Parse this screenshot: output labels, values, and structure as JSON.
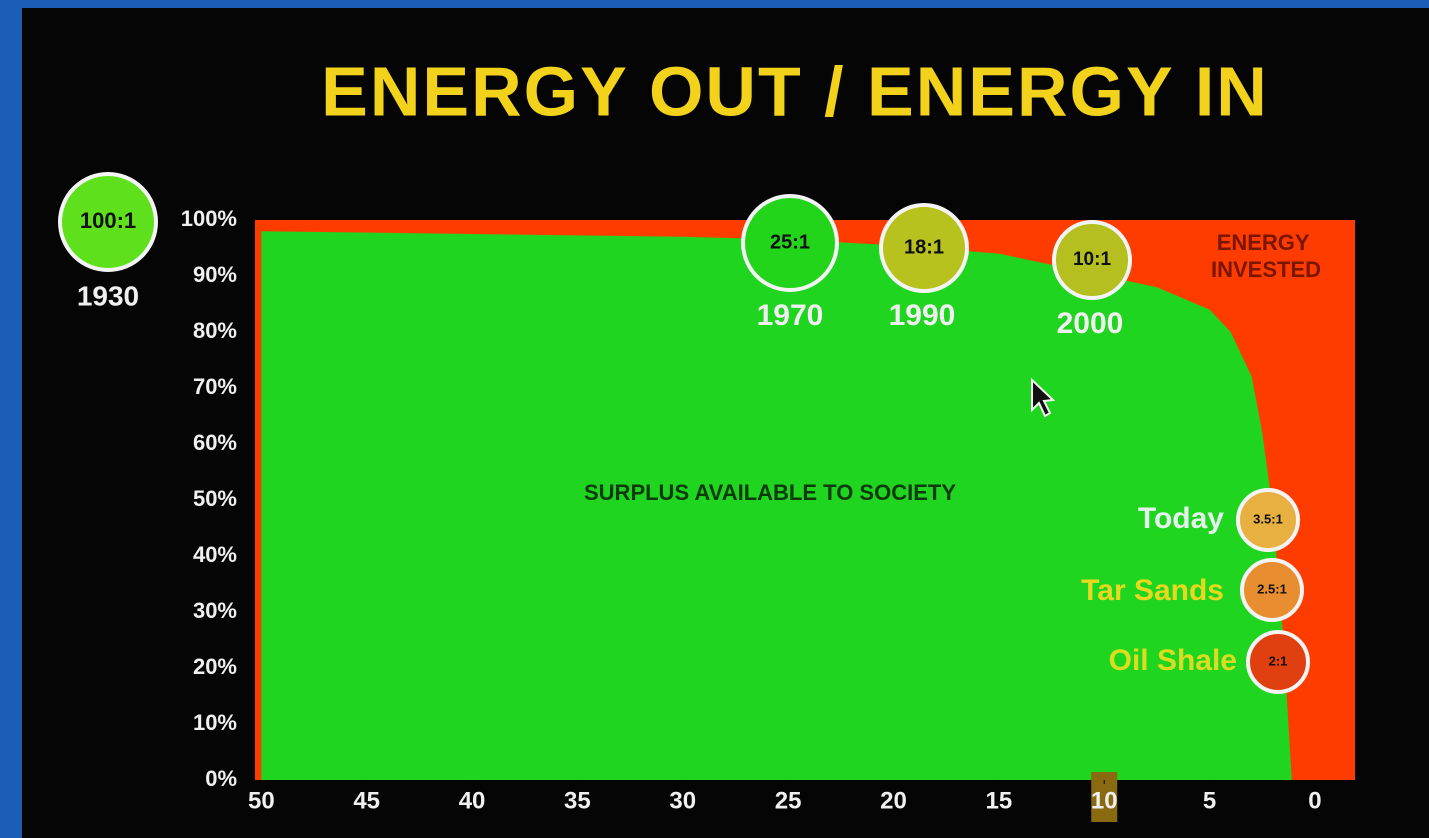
{
  "chart_data": {
    "type": "area",
    "title": "ENERGY OUT / ENERGY IN",
    "x": [
      50,
      40,
      30,
      25,
      20,
      15,
      10,
      7.5,
      5,
      4,
      3,
      2.5,
      2,
      1.5,
      1.1
    ],
    "series": [
      {
        "name": "SURPLUS AVAILABLE TO SOCIETY",
        "color": "#1fd51f",
        "values": [
          98,
          97.5,
          97,
          96.5,
          95.5,
          94,
          90,
          88,
          84,
          80,
          72,
          62,
          48,
          25,
          0
        ]
      }
    ],
    "invested_label": "ENERGY INVESTED",
    "invested_color": "#ff3c00",
    "xlim": [
      50.3,
      -1.9
    ],
    "xticks": [
      50,
      45,
      40,
      35,
      30,
      25,
      20,
      15,
      10,
      5,
      0
    ],
    "ylim": [
      0,
      100
    ],
    "yticks": [
      {
        "value": 0,
        "label": "0%"
      },
      {
        "value": 10,
        "label": "10%"
      },
      {
        "value": 20,
        "label": "20%"
      },
      {
        "value": 30,
        "label": "30%"
      },
      {
        "value": 40,
        "label": "40%"
      },
      {
        "value": 50,
        "label": "50%"
      },
      {
        "value": 60,
        "label": "60%"
      },
      {
        "value": 70,
        "label": "70%"
      },
      {
        "value": 80,
        "label": "80%"
      },
      {
        "value": 90,
        "label": "90%"
      },
      {
        "value": 100,
        "label": "100%"
      }
    ],
    "annotations": [
      {
        "ratio": "100:1",
        "label": "1930",
        "color": "#5ee01c",
        "label_color": "#f0f0f0"
      },
      {
        "ratio": "25:1",
        "label": "1970",
        "color": "#22d51a",
        "label_color": "#f0f0f0"
      },
      {
        "ratio": "18:1",
        "label": "1990",
        "color": "#b8c21e",
        "label_color": "#f0f0f0"
      },
      {
        "ratio": "10:1",
        "label": "2000",
        "color": "#b5c020",
        "label_color": "#f0f0f0"
      },
      {
        "ratio": "3.5:1",
        "label": "Today",
        "color": "#e8b040",
        "label_color": "#e4f4ec"
      },
      {
        "ratio": "2.5:1",
        "label": "Tar Sands",
        "color": "#e88e30",
        "label_color": "#e8d820"
      },
      {
        "ratio": "2:1",
        "label": "Oil Shale",
        "color": "#e04010",
        "label_color": "#dcdc20"
      }
    ]
  }
}
